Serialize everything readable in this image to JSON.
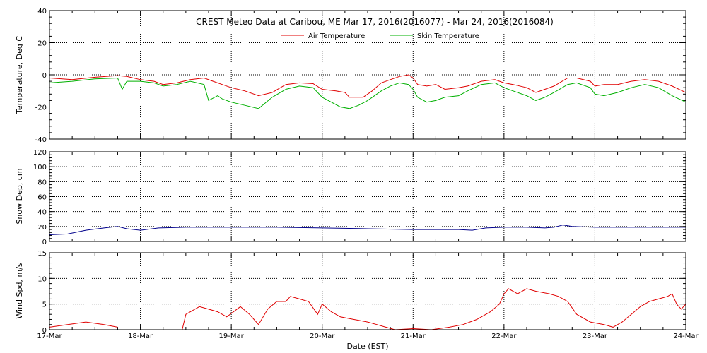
{
  "chart_data": {
    "title": "CREST Meteo Data at Caribou, ME   Mar 17, 2016(2016077) - Mar 24, 2016(2016084)",
    "xlabel": "Date (EST)",
    "x_ticks": [
      "17-Mar",
      "18-Mar",
      "19-Mar",
      "20-Mar",
      "21-Mar",
      "22-Mar",
      "23-Mar",
      "24-Mar"
    ],
    "x_range_days": [
      0,
      7
    ],
    "colors": {
      "air": "#e00000",
      "skin": "#00b000",
      "snow": "#00008b",
      "wind": "#e00000"
    },
    "panels": [
      {
        "type": "line",
        "ylabel": "Temperature, Deg C",
        "ylim": [
          -40,
          40
        ],
        "yticks": [
          "40",
          "20",
          "0",
          "-20",
          "-40"
        ],
        "grid": true,
        "legend": [
          {
            "name": "Air Temperature",
            "color": "#e00000"
          },
          {
            "name": "Skin Temperature",
            "color": "#00b000"
          }
        ],
        "series": [
          {
            "name": "Air Temperature",
            "color": "#e00000",
            "points": [
              [
                0,
                -2
              ],
              [
                0.25,
                -3
              ],
              [
                0.5,
                -1.5
              ],
              [
                0.75,
                -0.5
              ],
              [
                0.85,
                -1
              ],
              [
                1,
                -3
              ],
              [
                1.15,
                -4
              ],
              [
                1.25,
                -6
              ],
              [
                1.4,
                -5
              ],
              [
                1.55,
                -3
              ],
              [
                1.7,
                -2
              ],
              [
                1.8,
                -4
              ],
              [
                1.9,
                -6
              ],
              [
                2,
                -8
              ],
              [
                2.15,
                -10
              ],
              [
                2.3,
                -13
              ],
              [
                2.45,
                -11
              ],
              [
                2.6,
                -6
              ],
              [
                2.75,
                -5
              ],
              [
                2.9,
                -5.5
              ],
              [
                3,
                -9
              ],
              [
                3.15,
                -10
              ],
              [
                3.25,
                -11
              ],
              [
                3.3,
                -14
              ],
              [
                3.45,
                -14
              ],
              [
                3.55,
                -10
              ],
              [
                3.65,
                -5
              ],
              [
                3.75,
                -3
              ],
              [
                3.85,
                -1
              ],
              [
                3.95,
                0
              ],
              [
                4,
                -2
              ],
              [
                4.05,
                -6
              ],
              [
                4.15,
                -7
              ],
              [
                4.25,
                -6
              ],
              [
                4.35,
                -9
              ],
              [
                4.5,
                -8
              ],
              [
                4.6,
                -7
              ],
              [
                4.75,
                -4
              ],
              [
                4.9,
                -3
              ],
              [
                5,
                -5
              ],
              [
                5.1,
                -6
              ],
              [
                5.25,
                -8
              ],
              [
                5.35,
                -11
              ],
              [
                5.45,
                -9
              ],
              [
                5.55,
                -7
              ],
              [
                5.7,
                -2
              ],
              [
                5.8,
                -2
              ],
              [
                5.95,
                -4
              ],
              [
                6,
                -7
              ],
              [
                6.1,
                -6
              ],
              [
                6.25,
                -6
              ],
              [
                6.4,
                -4
              ],
              [
                6.55,
                -3
              ],
              [
                6.7,
                -4
              ],
              [
                6.85,
                -7
              ],
              [
                7,
                -11
              ]
            ]
          },
          {
            "name": "Skin Temperature",
            "color": "#00b000",
            "points": [
              [
                0,
                -5
              ],
              [
                0.25,
                -4
              ],
              [
                0.5,
                -2.5
              ],
              [
                0.75,
                -2
              ],
              [
                0.8,
                -9
              ],
              [
                0.85,
                -4
              ],
              [
                1,
                -4
              ],
              [
                1.15,
                -5
              ],
              [
                1.25,
                -7
              ],
              [
                1.4,
                -6
              ],
              [
                1.55,
                -4
              ],
              [
                1.7,
                -6
              ],
              [
                1.75,
                -16
              ],
              [
                1.85,
                -13
              ],
              [
                1.9,
                -15
              ],
              [
                2,
                -17
              ],
              [
                2.15,
                -19
              ],
              [
                2.3,
                -21
              ],
              [
                2.45,
                -14
              ],
              [
                2.6,
                -9
              ],
              [
                2.75,
                -7
              ],
              [
                2.9,
                -8
              ],
              [
                3,
                -14
              ],
              [
                3.1,
                -17
              ],
              [
                3.2,
                -20
              ],
              [
                3.3,
                -21
              ],
              [
                3.4,
                -19
              ],
              [
                3.5,
                -16
              ],
              [
                3.65,
                -10
              ],
              [
                3.75,
                -7
              ],
              [
                3.85,
                -5
              ],
              [
                3.95,
                -6
              ],
              [
                4,
                -9
              ],
              [
                4.05,
                -14
              ],
              [
                4.15,
                -17
              ],
              [
                4.25,
                -16
              ],
              [
                4.35,
                -14
              ],
              [
                4.5,
                -13
              ],
              [
                4.6,
                -10
              ],
              [
                4.75,
                -6
              ],
              [
                4.9,
                -5
              ],
              [
                5,
                -8
              ],
              [
                5.1,
                -10
              ],
              [
                5.25,
                -13
              ],
              [
                5.35,
                -16
              ],
              [
                5.45,
                -14
              ],
              [
                5.55,
                -11
              ],
              [
                5.7,
                -6
              ],
              [
                5.8,
                -5
              ],
              [
                5.95,
                -8
              ],
              [
                6,
                -12
              ],
              [
                6.1,
                -13
              ],
              [
                6.25,
                -11
              ],
              [
                6.4,
                -8
              ],
              [
                6.55,
                -6
              ],
              [
                6.7,
                -8
              ],
              [
                6.85,
                -13
              ],
              [
                7,
                -17
              ]
            ]
          }
        ]
      },
      {
        "type": "line",
        "ylabel": "Snow Dep, cm",
        "ylim": [
          0,
          120
        ],
        "yticks": [
          "120",
          "100",
          "80",
          "60",
          "40",
          "20",
          "0"
        ],
        "grid": true,
        "series": [
          {
            "name": "",
            "color": "#00008b",
            "points": [
              [
                0,
                9
              ],
              [
                0.2,
                10
              ],
              [
                0.4,
                15
              ],
              [
                0.6,
                18
              ],
              [
                0.75,
                20
              ],
              [
                0.85,
                17
              ],
              [
                1,
                15
              ],
              [
                1.2,
                18
              ],
              [
                1.5,
                19
              ],
              [
                2,
                19
              ],
              [
                2.5,
                19
              ],
              [
                3,
                18
              ],
              [
                3.5,
                17
              ],
              [
                4,
                16
              ],
              [
                4.5,
                16
              ],
              [
                4.65,
                15
              ],
              [
                4.8,
                18
              ],
              [
                5,
                19
              ],
              [
                5.25,
                19
              ],
              [
                5.45,
                18
              ],
              [
                5.55,
                19
              ],
              [
                5.65,
                22
              ],
              [
                5.75,
                20
              ],
              [
                6,
                19
              ],
              [
                6.5,
                19
              ],
              [
                7,
                19
              ]
            ]
          }
        ]
      },
      {
        "type": "line",
        "ylabel": "Wind Spd, m/s",
        "ylim": [
          0,
          15
        ],
        "yticks": [
          "15",
          "10",
          "5",
          "0"
        ],
        "grid": true,
        "series": [
          {
            "name": "",
            "color": "#e00000",
            "points": [
              [
                0,
                0.5
              ],
              [
                0.2,
                1
              ],
              [
                0.4,
                1.5
              ],
              [
                0.6,
                1
              ],
              [
                0.75,
                0.5
              ],
              [
                0.76,
                null
              ],
              [
                1.45,
                null
              ],
              [
                1.46,
                0
              ],
              [
                1.5,
                3
              ],
              [
                1.65,
                4.5
              ],
              [
                1.75,
                4
              ],
              [
                1.85,
                3.5
              ],
              [
                1.95,
                2.5
              ],
              [
                2.1,
                4.5
              ],
              [
                2.2,
                3
              ],
              [
                2.25,
                2
              ],
              [
                2.3,
                1
              ],
              [
                2.4,
                4
              ],
              [
                2.5,
                5.5
              ],
              [
                2.6,
                5.5
              ],
              [
                2.65,
                6.5
              ],
              [
                2.75,
                6
              ],
              [
                2.85,
                5.5
              ],
              [
                2.95,
                3
              ],
              [
                3,
                5
              ],
              [
                3.1,
                3.5
              ],
              [
                3.2,
                2.5
              ],
              [
                3.35,
                2
              ],
              [
                3.5,
                1.5
              ],
              [
                3.6,
                1
              ],
              [
                3.7,
                0.5
              ],
              [
                3.8,
                0
              ],
              [
                4,
                0.2
              ],
              [
                4.2,
                0
              ],
              [
                4.4,
                0.5
              ],
              [
                4.55,
                1
              ],
              [
                4.7,
                2
              ],
              [
                4.85,
                3.5
              ],
              [
                4.95,
                5
              ],
              [
                5,
                7
              ],
              [
                5.05,
                8
              ],
              [
                5.15,
                7
              ],
              [
                5.25,
                8
              ],
              [
                5.35,
                7.5
              ],
              [
                5.5,
                7
              ],
              [
                5.6,
                6.5
              ],
              [
                5.7,
                5.5
              ],
              [
                5.8,
                3
              ],
              [
                5.95,
                1.5
              ],
              [
                6.1,
                1
              ],
              [
                6.2,
                0.5
              ],
              [
                6.3,
                1.5
              ],
              [
                6.4,
                3
              ],
              [
                6.5,
                4.5
              ],
              [
                6.6,
                5.5
              ],
              [
                6.7,
                6
              ],
              [
                6.8,
                6.5
              ],
              [
                6.85,
                7
              ],
              [
                6.9,
                5
              ],
              [
                6.95,
                4
              ],
              [
                7,
                5
              ]
            ]
          }
        ]
      }
    ]
  }
}
